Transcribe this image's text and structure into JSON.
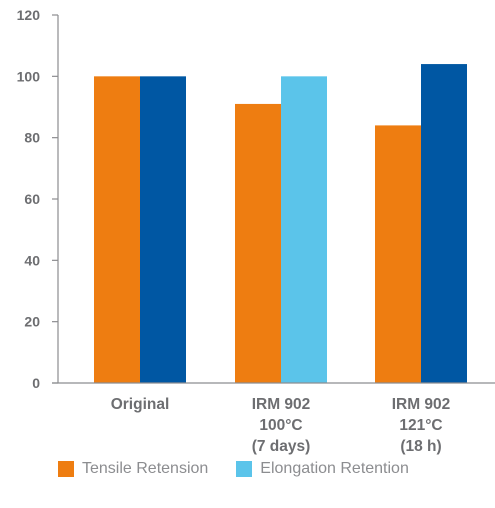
{
  "chart_data": {
    "type": "bar",
    "categories": [
      [
        "Original"
      ],
      [
        "IRM 902",
        "100°C",
        "(7 days)"
      ],
      [
        "IRM 902",
        "121°C",
        "(18 h)"
      ]
    ],
    "series": [
      {
        "name": "Tensile Retension",
        "values": [
          100,
          91,
          84
        ],
        "color": "#ee7d11",
        "point_colors": [
          "#ee7d11",
          "#ee7d11",
          "#ee7d11"
        ]
      },
      {
        "name": "Elongation Retention",
        "values": [
          100,
          100,
          104
        ],
        "color": "#5bc4ea",
        "point_colors": [
          "#0057a3",
          "#5bc4ea",
          "#0057a3"
        ]
      }
    ],
    "yticks": [
      0,
      20,
      40,
      60,
      80,
      100,
      120
    ],
    "ylim": [
      0,
      120
    ],
    "grid": false,
    "legend_position": "bottom"
  }
}
